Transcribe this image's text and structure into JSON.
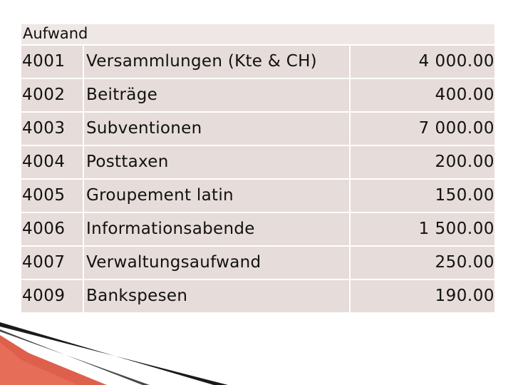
{
  "header": {
    "title": "Aufwand"
  },
  "rows": [
    {
      "account": "4001",
      "description": "Versammlungen (Kte & CH)",
      "amount": "4 000.00"
    },
    {
      "account": "4002",
      "description": "Beiträge",
      "amount": "400.00"
    },
    {
      "account": "4003",
      "description": "Subventionen",
      "amount": "7 000.00"
    },
    {
      "account": "4004",
      "description": "Posttaxen",
      "amount": "200.00"
    },
    {
      "account": "4005",
      "description": "Groupement latin",
      "amount": "150.00"
    },
    {
      "account": "4006",
      "description": "Informationsabende",
      "amount": "1 500.00"
    },
    {
      "account": "4007",
      "description": "Verwaltungsaufwand",
      "amount": "250.00"
    },
    {
      "account": "4009",
      "description": "Bankspesen",
      "amount": "190.00"
    }
  ],
  "colors": {
    "header_bg": "#eee7e5",
    "row_bg": "#e6dcd9",
    "deco_red": "#d9432e",
    "deco_black": "#1a1a1a"
  }
}
